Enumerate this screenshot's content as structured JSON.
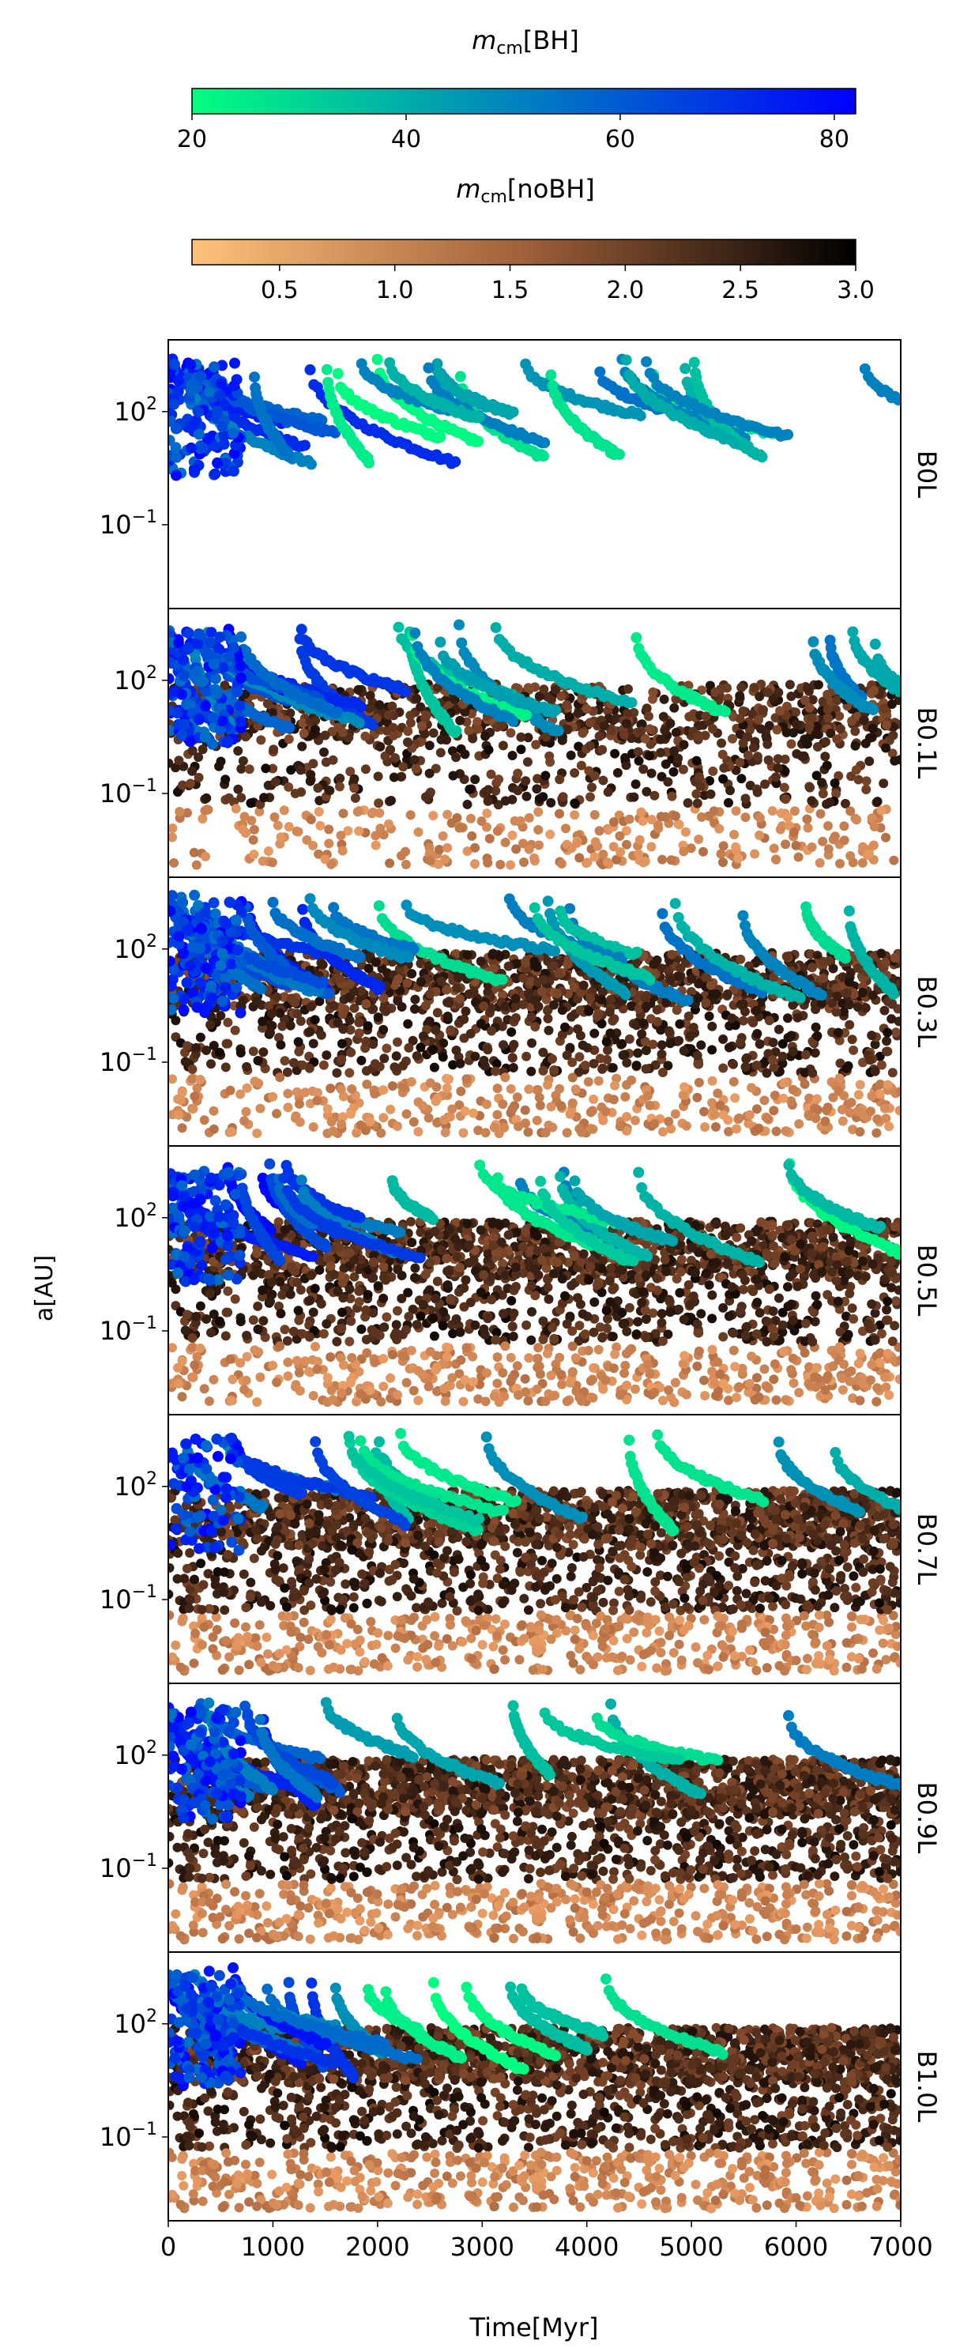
{
  "colorbars": {
    "bh": {
      "label_math": "m",
      "label_sub": "cm",
      "label_suffix": "[BH]",
      "ticks": [
        "20",
        "40",
        "60",
        "80"
      ],
      "tick_values": [
        20,
        40,
        60,
        80
      ],
      "range": [
        20,
        82
      ],
      "colors": [
        "#00ff80",
        "#0000ff"
      ]
    },
    "nobh": {
      "label_math": "m",
      "label_sub": "cm",
      "label_suffix": "[noBH]",
      "ticks": [
        "0.5",
        "1.0",
        "1.5",
        "2.0",
        "2.5",
        "3.0"
      ],
      "tick_values": [
        0.5,
        1.0,
        1.5,
        2.0,
        2.5,
        3.0
      ],
      "range": [
        0.12,
        3.0
      ],
      "colors": [
        "#ffc27a",
        "#000000"
      ]
    }
  },
  "chart_data": {
    "type": "scatter",
    "xlabel": "Time[Myr]",
    "ylabel": "a[AU]",
    "xlim": [
      0,
      7000
    ],
    "xticks": [
      "0",
      "1000",
      "2000",
      "3000",
      "4000",
      "5000",
      "6000",
      "7000"
    ],
    "xtick_values": [
      0,
      1000,
      2000,
      3000,
      4000,
      5000,
      6000,
      7000
    ],
    "yscale": "log",
    "ylim": [
      0.0006,
      8000
    ],
    "yticks": [
      {
        "base": "10",
        "exp": "2",
        "value": 100
      },
      {
        "base": "10",
        "exp": "−1",
        "value": 0.1
      }
    ],
    "panels": [
      {
        "label": "B0L",
        "nobh_density": 0,
        "bh_density": 1.0,
        "bh_weight_early": 1.0
      },
      {
        "label": "B0.1L",
        "nobh_density": 0.55,
        "bh_density": 0.9,
        "bh_weight_early": 0.7
      },
      {
        "label": "B0.3L",
        "nobh_density": 0.75,
        "bh_density": 1.0,
        "bh_weight_early": 0.8
      },
      {
        "label": "B0.5L",
        "nobh_density": 0.85,
        "bh_density": 0.9,
        "bh_weight_early": 0.6
      },
      {
        "label": "B0.7L",
        "nobh_density": 0.95,
        "bh_density": 0.6,
        "bh_weight_early": 0.6
      },
      {
        "label": "B0.9L",
        "nobh_density": 1.0,
        "bh_density": 0.7,
        "bh_weight_early": 0.7
      },
      {
        "label": "B1.0L",
        "nobh_density": 1.0,
        "bh_density": 0.85,
        "bh_weight_early": 0.8
      }
    ]
  }
}
